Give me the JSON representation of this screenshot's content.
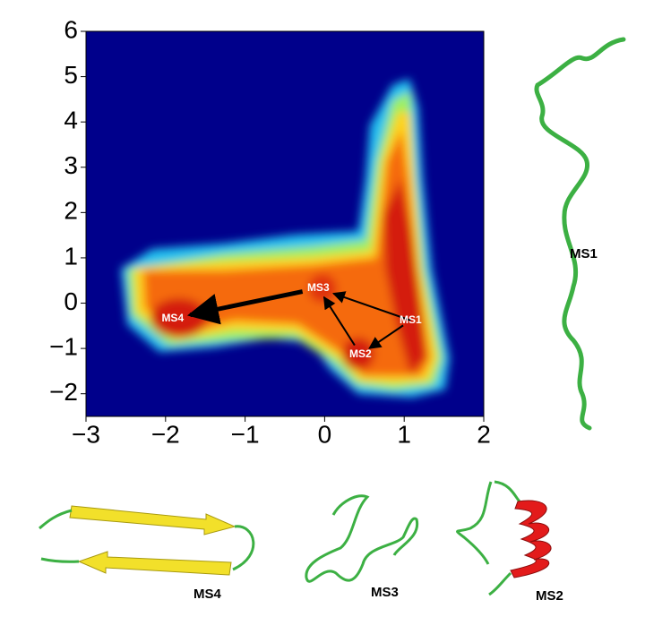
{
  "chart_data": {
    "type": "scatter",
    "xlim": [
      -3,
      2
    ],
    "ylim": [
      -2.5,
      6
    ],
    "xticks": [
      {
        "value": -3,
        "label": "−3"
      },
      {
        "value": -2,
        "label": "−2"
      },
      {
        "value": -1,
        "label": "−1"
      },
      0,
      1,
      2
    ],
    "yticks": [
      {
        "value": -2,
        "label": "−2"
      },
      {
        "value": -1,
        "label": "−1"
      },
      0,
      1,
      2,
      3,
      4,
      5,
      6
    ],
    "labels": [
      "MS1",
      "MS2",
      "MS3",
      "MS4"
    ],
    "x": [
      1.08,
      0.45,
      -0.08,
      -1.91
    ],
    "y": [
      -0.38,
      -1.13,
      0.33,
      -0.34
    ],
    "structure_labels": [
      "MS1",
      "MS4",
      "MS3",
      "MS2"
    ]
  }
}
